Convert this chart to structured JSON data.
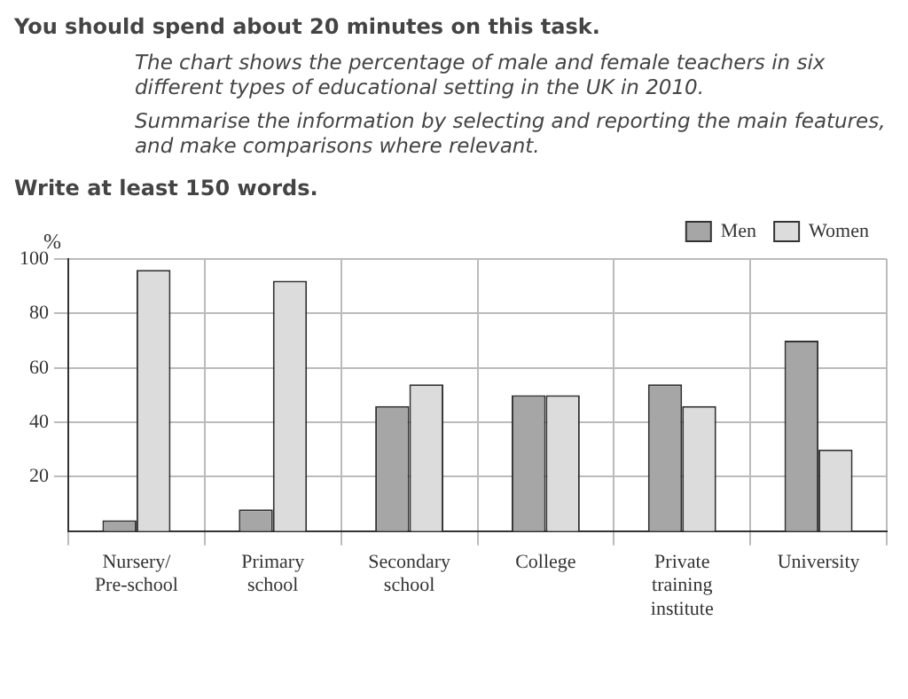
{
  "chart_data": {
    "type": "bar",
    "title": "You should spend about 20 minutes on this task.",
    "subtitle": "The chart shows the percentage of male and female teachers in six different types of educational setting in the UK in 2010.",
    "annotations": [
      "Summarise the information by selecting and reporting the main features, and make comparisons where relevant.",
      "Write at least 150 words."
    ],
    "ylabel": "%",
    "categories": [
      "Nursery/ Pre-school",
      "Primary school",
      "Secondary school",
      "College",
      "Private training institute",
      "University"
    ],
    "series": [
      {
        "name": "Men",
        "color": "#a6a6a6",
        "values": [
          4,
          8,
          46,
          50,
          54,
          70
        ]
      },
      {
        "name": "Women",
        "color": "#dcdcdc",
        "values": [
          96,
          92,
          54,
          50,
          46,
          30
        ]
      }
    ],
    "ylim": [
      0,
      100
    ],
    "yticks": [
      20,
      40,
      60,
      80,
      100
    ],
    "grid": true,
    "legend": "top right"
  }
}
